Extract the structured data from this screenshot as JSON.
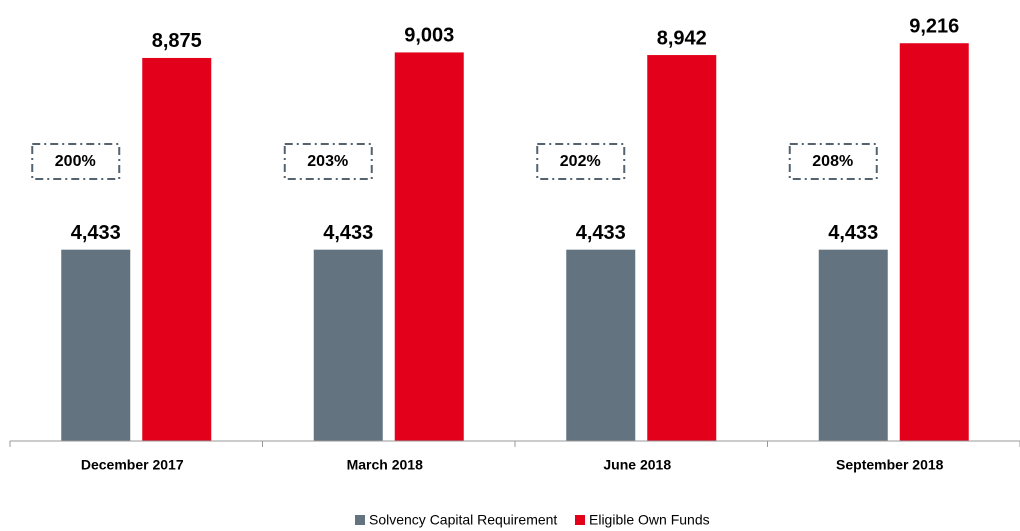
{
  "chart_data": {
    "type": "bar",
    "categories": [
      "December 2017",
      "March 2018",
      "June 2018",
      "September 2018"
    ],
    "series": [
      {
        "name": "Solvency Capital Requirement",
        "color": "#637480",
        "values": [
          4433,
          4433,
          4433,
          4433
        ],
        "value_labels": [
          "4,433",
          "4,433",
          "4,433",
          "4,433"
        ]
      },
      {
        "name": "Eligible Own Funds",
        "color": "#e3001b",
        "values": [
          8875,
          9003,
          8942,
          9216
        ],
        "value_labels": [
          "8,875",
          "9,003",
          "8,942",
          "9,216"
        ]
      }
    ],
    "annotations": [
      "200%",
      "203%",
      "202%",
      "208%"
    ],
    "ylim": [
      0,
      10000
    ],
    "legend": "bottom"
  }
}
